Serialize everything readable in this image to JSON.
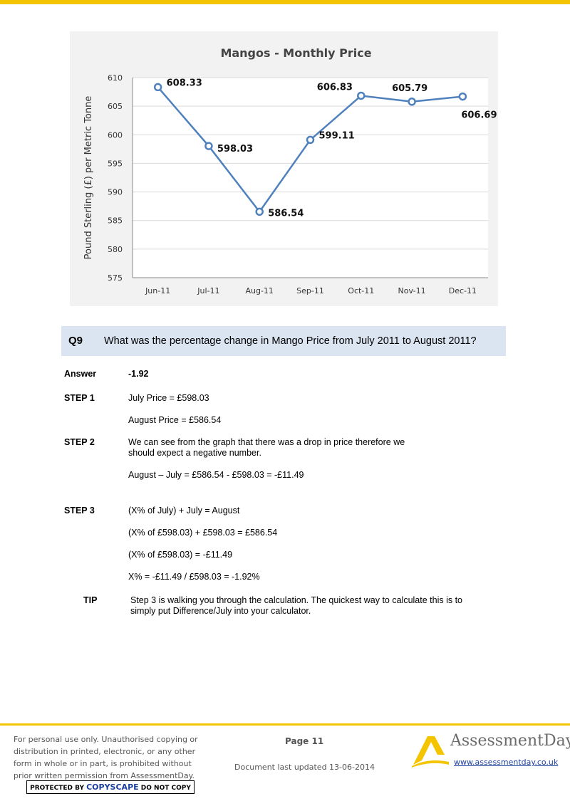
{
  "chart_data": {
    "type": "line",
    "title": "Mangos - Monthly Price",
    "ylabel": "Pound Sterling (£) per Metric Tonne",
    "xlabel": "",
    "categories": [
      "Jun-11",
      "Jul-11",
      "Aug-11",
      "Sep-11",
      "Oct-11",
      "Nov-11",
      "Dec-11"
    ],
    "values": [
      608.33,
      598.03,
      586.54,
      599.11,
      606.83,
      605.79,
      606.69
    ],
    "data_labels": [
      "608.33",
      "598.03",
      "586.54",
      "599.11",
      "606.83",
      "605.79",
      "606.69"
    ],
    "ylim": [
      575,
      610
    ],
    "yticks": [
      "575",
      "580",
      "585",
      "590",
      "595",
      "600",
      "605",
      "610"
    ],
    "grid": true,
    "colors": {
      "line": "#4f81bd",
      "marker_fill": "#ffffff",
      "background": "#f2f2f2"
    }
  },
  "question": {
    "number": "Q9",
    "text": "What was the percentage change in Mango Price from July 2011 to August 2011?"
  },
  "answer": {
    "label": "Answer",
    "value": "-1.92"
  },
  "steps": [
    {
      "label": "STEP 1",
      "lines": [
        "July Price = £598.03",
        "August Price = £586.54"
      ]
    },
    {
      "label": "STEP 2",
      "lines": [
        "We can see from the graph that there was a drop in price therefore we",
        "should expect a negative number.",
        "August – July  = £586.54 - £598.03 = -£11.49"
      ]
    },
    {
      "label": "STEP 3",
      "lines": [
        "(X% of July) + July = August",
        "(X% of £598.03) + £598.03 = £586.54",
        "(X% of £598.03) = -£11.49",
        "X% = -£11.49 / £598.03 = -1.92%"
      ]
    }
  ],
  "tip": {
    "label": "TIP",
    "lines": [
      "Step 3 is walking you through the calculation.  The quickest way to calculate this is to",
      "simply put Difference/July into your calculator."
    ]
  },
  "footer": {
    "notice_lines": [
      "For personal use only. Unauthorised copying or",
      "distribution in printed, electronic, or any other",
      "form in whole or in part, is prohibited without",
      "prior written permission from AssessmentDay."
    ],
    "copyscape": {
      "pre": "PROTECTED BY ",
      "brand": "COPYSCAPE",
      "post": " DO NOT COPY"
    },
    "page": "Page 11",
    "updated": "Document last updated 13-06-2014",
    "logo_name": "AssessmentDay",
    "logo_url": "www.assessmentday.co.uk",
    "colors": {
      "accent": "#f5c400",
      "link": "#1f3f9e"
    }
  }
}
